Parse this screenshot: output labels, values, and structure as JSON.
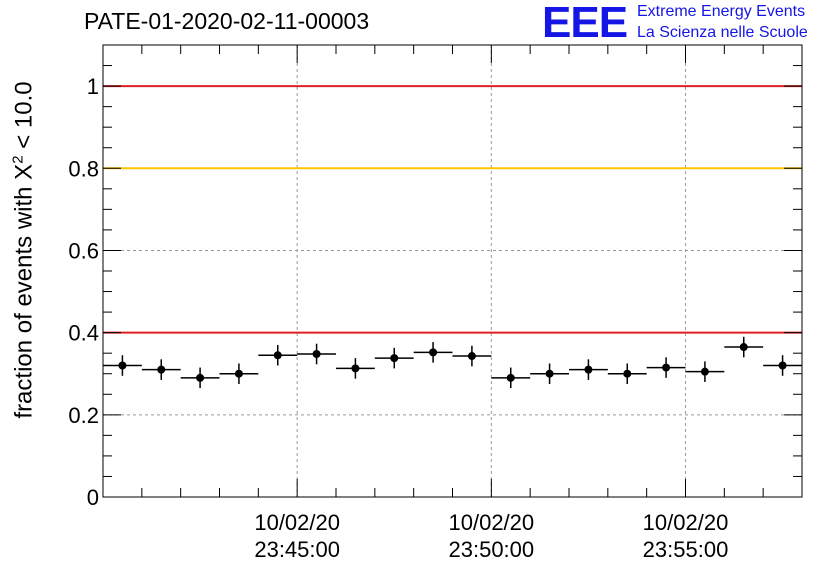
{
  "title": "PATE-01-2020-02-11-00003",
  "logo": {
    "mark": "EEE",
    "line1": "Extreme Energy Events",
    "line2": "La Scienza nelle Scuole"
  },
  "chart_data": {
    "type": "scatter",
    "title": "PATE-01-2020-02-11-00003",
    "ylabel_prefix": "fraction of events with ",
    "ylabel_symbol": "X",
    "ylabel_sup": "2",
    "ylabel_suffix": " < 10.0",
    "ylabel": "fraction of events with X2 < 10.0",
    "ylim": [
      0,
      1.1
    ],
    "yticks": [
      0,
      0.2,
      0.4,
      0.6,
      0.8,
      1
    ],
    "ytick_labels": [
      "0",
      "0.2",
      "0.4",
      "0.6",
      "0.8",
      "1"
    ],
    "xlim": [
      "2020-02-10 23:40:00",
      "2020-02-10 23:58:00"
    ],
    "xticks": [
      "2020-02-10 23:45:00",
      "2020-02-10 23:50:00",
      "2020-02-10 23:55:00"
    ],
    "xtick_labels": [
      [
        "10/02/20",
        "23:45:00"
      ],
      [
        "10/02/20",
        "23:50:00"
      ],
      [
        "10/02/20",
        "23:55:00"
      ]
    ],
    "grid": true,
    "reference_lines": [
      {
        "y": 1.0,
        "color": "#e02020"
      },
      {
        "y": 0.8,
        "color": "#ffc400"
      },
      {
        "y": 0.4,
        "color": "#e02020"
      }
    ],
    "series": [
      {
        "color": "#000000",
        "points": [
          {
            "x": "2020-02-10 23:40:30",
            "y": 0.32,
            "yerr": 0.025
          },
          {
            "x": "2020-02-10 23:41:30",
            "y": 0.31,
            "yerr": 0.025
          },
          {
            "x": "2020-02-10 23:42:30",
            "y": 0.29,
            "yerr": 0.025
          },
          {
            "x": "2020-02-10 23:43:30",
            "y": 0.3,
            "yerr": 0.025
          },
          {
            "x": "2020-02-10 23:44:30",
            "y": 0.345,
            "yerr": 0.025
          },
          {
            "x": "2020-02-10 23:45:30",
            "y": 0.348,
            "yerr": 0.025
          },
          {
            "x": "2020-02-10 23:46:30",
            "y": 0.313,
            "yerr": 0.025
          },
          {
            "x": "2020-02-10 23:47:30",
            "y": 0.338,
            "yerr": 0.025
          },
          {
            "x": "2020-02-10 23:48:30",
            "y": 0.352,
            "yerr": 0.025
          },
          {
            "x": "2020-02-10 23:49:30",
            "y": 0.343,
            "yerr": 0.025
          },
          {
            "x": "2020-02-10 23:50:30",
            "y": 0.29,
            "yerr": 0.025
          },
          {
            "x": "2020-02-10 23:51:30",
            "y": 0.3,
            "yerr": 0.025
          },
          {
            "x": "2020-02-10 23:52:30",
            "y": 0.31,
            "yerr": 0.025
          },
          {
            "x": "2020-02-10 23:53:30",
            "y": 0.3,
            "yerr": 0.025
          },
          {
            "x": "2020-02-10 23:54:30",
            "y": 0.315,
            "yerr": 0.025
          },
          {
            "x": "2020-02-10 23:55:30",
            "y": 0.305,
            "yerr": 0.025
          },
          {
            "x": "2020-02-10 23:56:30",
            "y": 0.365,
            "yerr": 0.025
          },
          {
            "x": "2020-02-10 23:57:30",
            "y": 0.32,
            "yerr": 0.025
          }
        ]
      }
    ]
  }
}
